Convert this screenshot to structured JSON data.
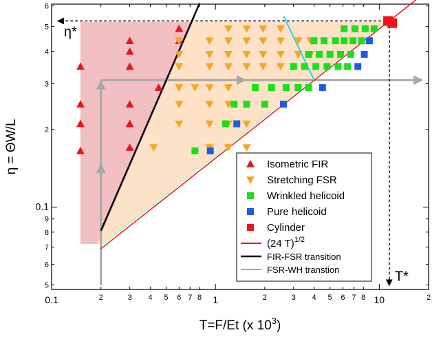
{
  "colors": {
    "isometric_fir": "#e8161b",
    "stretching_fsr": "#f5a623",
    "wrinkled_helicoid": "#19e019",
    "pure_helicoid": "#1f5bdc",
    "cylinder": "#e8161b",
    "region_fir": "#f2c0c2",
    "region_fsr": "#fde2c8",
    "region_wh": "#c9f1c6",
    "guide_arrow": "#a8a8a8",
    "transition_fir_fsr": "#000000",
    "transition_fsr_wh": "#22d8f0",
    "sqrt_line": "#e8161b"
  },
  "chart_data": {
    "type": "scatter",
    "xscale": "log",
    "yscale": "log",
    "xlim": [
      0.1,
      20
    ],
    "ylim": [
      0.048,
      0.61
    ],
    "xlabel": "T=F/Et (x 10",
    "xlabel_sup": "3",
    "xlabel_end": ")",
    "ylabel": "η = ΘW/L",
    "x_major_ticks": [
      {
        "v": 0.1,
        "label": "0.1"
      },
      {
        "v": 1,
        "label": "1"
      },
      {
        "v": 10,
        "label": "10"
      }
    ],
    "x_minor_ticks": [
      {
        "v": 0.2,
        "label": "2"
      },
      {
        "v": 0.3,
        "label": "3"
      },
      {
        "v": 0.4,
        "label": "4"
      },
      {
        "v": 0.5,
        "label": "5"
      },
      {
        "v": 0.6,
        "label": "6"
      },
      {
        "v": 0.7,
        "label": "7"
      },
      {
        "v": 0.8,
        "label": "8"
      },
      {
        "v": 2,
        "label": "2"
      },
      {
        "v": 3,
        "label": "3"
      },
      {
        "v": 4,
        "label": "4"
      },
      {
        "v": 5,
        "label": "5"
      },
      {
        "v": 6,
        "label": "6"
      },
      {
        "v": 7,
        "label": "7"
      },
      {
        "v": 8,
        "label": "8"
      },
      {
        "v": 20,
        "label": "2"
      }
    ],
    "y_major_ticks": [
      {
        "v": 0.1,
        "label": "0.1"
      }
    ],
    "y_minor_ticks": [
      {
        "v": 0.05,
        "label": "5"
      },
      {
        "v": 0.06,
        "label": "6"
      },
      {
        "v": 0.07,
        "label": "7"
      },
      {
        "v": 0.08,
        "label": "8"
      },
      {
        "v": 0.09,
        "label": "9"
      },
      {
        "v": 0.2,
        "label": "2"
      },
      {
        "v": 0.3,
        "label": "3"
      },
      {
        "v": 0.4,
        "label": "4"
      },
      {
        "v": 0.5,
        "label": "5"
      },
      {
        "v": 0.6,
        "label": "6"
      }
    ],
    "series": [
      {
        "name": "Isometric FIR",
        "marker": "triangle-up",
        "points": [
          [
            0.15,
            0.35
          ],
          [
            0.15,
            0.25
          ],
          [
            0.15,
            0.21
          ],
          [
            0.15,
            0.165
          ],
          [
            0.3,
            0.44
          ],
          [
            0.3,
            0.4
          ],
          [
            0.3,
            0.35
          ],
          [
            0.3,
            0.25
          ],
          [
            0.3,
            0.21
          ],
          [
            0.3,
            0.17
          ],
          [
            0.45,
            0.29
          ],
          [
            0.6,
            0.49
          ],
          [
            0.6,
            0.44
          ]
        ]
      },
      {
        "name": "Stretching FSR",
        "marker": "triangle-down",
        "points": [
          [
            0.42,
            0.17
          ],
          [
            0.6,
            0.44
          ],
          [
            0.6,
            0.39
          ],
          [
            0.6,
            0.35
          ],
          [
            0.6,
            0.29
          ],
          [
            0.6,
            0.25
          ],
          [
            0.6,
            0.21
          ],
          [
            0.75,
            0.29
          ],
          [
            0.92,
            0.29
          ],
          [
            1.2,
            0.49
          ],
          [
            1.55,
            0.49
          ],
          [
            1.95,
            0.49
          ],
          [
            2.5,
            0.49
          ],
          [
            0.92,
            0.44
          ],
          [
            1.2,
            0.44
          ],
          [
            1.55,
            0.44
          ],
          [
            1.95,
            0.44
          ],
          [
            2.5,
            0.44
          ],
          [
            3.2,
            0.44
          ],
          [
            3.8,
            0.44
          ],
          [
            0.92,
            0.39
          ],
          [
            1.2,
            0.39
          ],
          [
            1.55,
            0.39
          ],
          [
            1.95,
            0.39
          ],
          [
            2.5,
            0.39
          ],
          [
            3.2,
            0.39
          ],
          [
            3.8,
            0.39
          ],
          [
            0.92,
            0.35
          ],
          [
            1.2,
            0.35
          ],
          [
            1.55,
            0.35
          ],
          [
            1.95,
            0.35
          ],
          [
            2.5,
            0.35
          ],
          [
            1.2,
            0.29
          ],
          [
            0.92,
            0.25
          ],
          [
            1.2,
            0.25
          ],
          [
            1.55,
            0.25
          ],
          [
            0.92,
            0.21
          ],
          [
            1.2,
            0.21
          ],
          [
            1.55,
            0.21
          ],
          [
            0.92,
            0.17
          ],
          [
            1.2,
            0.17
          ],
          [
            1.55,
            0.17
          ]
        ]
      },
      {
        "name": "Wrinkled helicoid",
        "marker": "square",
        "points": [
          [
            0.75,
            0.165
          ],
          [
            1.15,
            0.21
          ],
          [
            1.3,
            0.25
          ],
          [
            1.55,
            0.25
          ],
          [
            2.0,
            0.25
          ],
          [
            1.75,
            0.29
          ],
          [
            2.2,
            0.29
          ],
          [
            2.7,
            0.29
          ],
          [
            3.2,
            0.29
          ],
          [
            3.7,
            0.29
          ],
          [
            3.0,
            0.35
          ],
          [
            3.5,
            0.35
          ],
          [
            4.1,
            0.35
          ],
          [
            4.8,
            0.35
          ],
          [
            5.6,
            0.35
          ],
          [
            6.4,
            0.35
          ],
          [
            3.7,
            0.39
          ],
          [
            4.3,
            0.39
          ],
          [
            5.0,
            0.39
          ],
          [
            5.8,
            0.39
          ],
          [
            6.7,
            0.39
          ],
          [
            5.4,
            0.44
          ],
          [
            6.1,
            0.44
          ],
          [
            6.9,
            0.44
          ],
          [
            7.8,
            0.44
          ],
          [
            6.1,
            0.49
          ],
          [
            7.1,
            0.49
          ],
          [
            8.2,
            0.49
          ],
          [
            9.3,
            0.49
          ],
          [
            4.0,
            0.44
          ],
          [
            4.6,
            0.44
          ]
        ]
      },
      {
        "name": "Pure helicoid",
        "marker": "square",
        "points": [
          [
            0.93,
            0.165
          ],
          [
            1.35,
            0.21
          ],
          [
            2.6,
            0.25
          ],
          [
            4.5,
            0.29
          ],
          [
            7.4,
            0.35
          ],
          [
            8.1,
            0.39
          ],
          [
            8.7,
            0.44
          ]
        ]
      },
      {
        "name": "Cylinder",
        "marker": "square-large",
        "points": [
          [
            11.3,
            0.525
          ],
          [
            12.0,
            0.515
          ]
        ]
      }
    ],
    "lines": [
      {
        "name": "(24 T)",
        "name_sup": "1/2",
        "points": [
          [
            0.2,
            0.069
          ],
          [
            18,
            0.657
          ]
        ]
      },
      {
        "name": "FIR-FSR transition",
        "points": [
          [
            0.2,
            0.081
          ],
          [
            0.8,
            0.614
          ]
        ]
      },
      {
        "name": "FSR-WH transtion",
        "points": [
          [
            2.6,
            0.55
          ],
          [
            4.0,
            0.31
          ]
        ]
      }
    ],
    "regions": [
      {
        "name": "Isometric FIR",
        "polygon": [
          [
            0.15,
            0.072
          ],
          [
            0.19,
            0.072
          ],
          [
            0.73,
            0.52
          ],
          [
            0.15,
            0.52
          ]
        ]
      },
      {
        "name": "Stretching FSR",
        "polygon": [
          [
            0.19,
            0.072
          ],
          [
            0.2,
            0.072
          ],
          [
            11.0,
            0.52
          ],
          [
            0.73,
            0.52
          ]
        ]
      },
      {
        "name": "Wrinkled helicoid",
        "polygon": [
          [
            0.2,
            0.072
          ],
          [
            0.21,
            0.072
          ],
          [
            11.0,
            0.52
          ]
        ]
      }
    ],
    "guide_arrows": [
      {
        "points": [
          [
            0.2,
            0.05
          ],
          [
            0.2,
            0.145
          ]
        ]
      },
      {
        "points": [
          [
            0.2,
            0.145
          ],
          [
            0.2,
            0.305
          ]
        ]
      },
      {
        "points": [
          [
            0.2,
            0.31
          ],
          [
            1.5,
            0.31
          ]
        ]
      },
      {
        "points": [
          [
            1.5,
            0.31
          ],
          [
            18,
            0.31
          ]
        ]
      }
    ],
    "guide_lines": [
      {
        "points": [
          [
            11.5,
            0.525
          ],
          [
            11.5,
            0.05
          ]
        ],
        "label": "T*"
      },
      {
        "points": [
          [
            11.0,
            0.525
          ],
          [
            0.11,
            0.525
          ]
        ],
        "label": "η*"
      }
    ],
    "legend": {
      "position": "lower-right",
      "entries": [
        {
          "label": "Isometric FIR",
          "marker": "triangle-up",
          "series": 0
        },
        {
          "label": "Stretching FSR",
          "marker": "triangle-down",
          "series": 1
        },
        {
          "label": "Wrinkled helicoid",
          "marker": "square",
          "series": 2
        },
        {
          "label": "Pure helicoid",
          "marker": "square",
          "series": 3
        },
        {
          "label": "Cylinder",
          "marker": "square",
          "series": 4
        },
        {
          "label": "(24 T)",
          "sup": "1/2",
          "line": "sqrt_line"
        },
        {
          "label": "FIR-FSR transition",
          "line": "transition_fir_fsr"
        },
        {
          "label": "FSR-WH transtion",
          "line": "transition_fsr_wh"
        }
      ]
    }
  }
}
